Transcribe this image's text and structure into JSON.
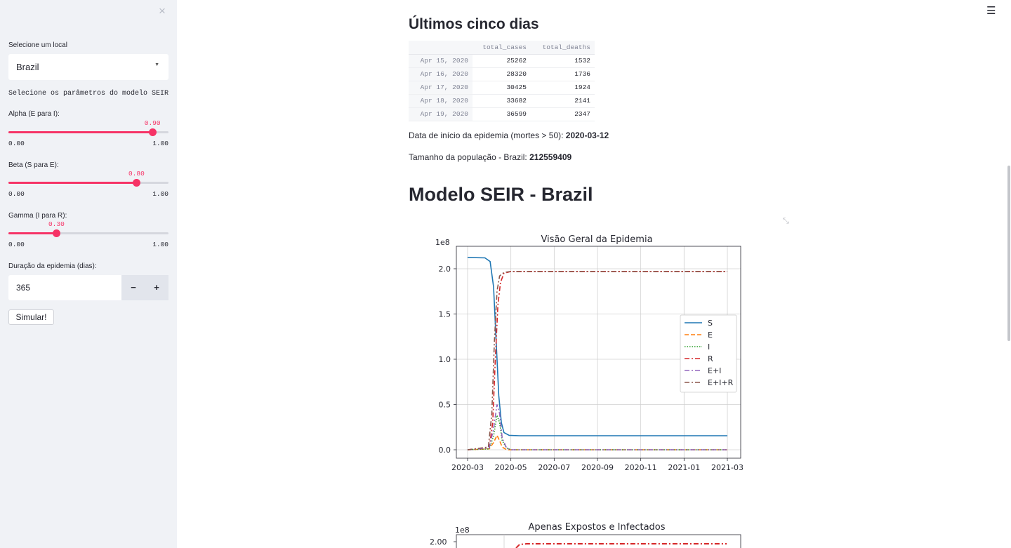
{
  "sidebar": {
    "close_icon": "×",
    "location_label": "Selecione um local",
    "location_value": "Brazil",
    "params_label": "Selecione os parâmetros do modelo SEIR",
    "sliders": [
      {
        "label": "Alpha (E para I):",
        "value": "0.90",
        "fraction": 0.9,
        "min": "0.00",
        "max": "1.00"
      },
      {
        "label": "Beta (S para E):",
        "value": "0.80",
        "fraction": 0.8,
        "min": "0.00",
        "max": "1.00"
      },
      {
        "label": "Gamma (I para R):",
        "value": "0.30",
        "fraction": 0.3,
        "min": "0.00",
        "max": "1.00"
      }
    ],
    "duration_label": "Duração da epidemia (dias):",
    "duration_value": "365",
    "minus": "−",
    "plus": "+",
    "simulate_button": "Simular!"
  },
  "header": {
    "menu_icon": "☰"
  },
  "main": {
    "last_days_title": "Últimos cinco dias",
    "table": {
      "columns": [
        "total_cases",
        "total_deaths"
      ],
      "rows": [
        {
          "date": "Apr 15, 2020",
          "cases": "25262",
          "deaths": "1532"
        },
        {
          "date": "Apr 16, 2020",
          "cases": "28320",
          "deaths": "1736"
        },
        {
          "date": "Apr 17, 2020",
          "cases": "30425",
          "deaths": "1924"
        },
        {
          "date": "Apr 18, 2020",
          "cases": "33682",
          "deaths": "2141"
        },
        {
          "date": "Apr 19, 2020",
          "cases": "36599",
          "deaths": "2347"
        }
      ]
    },
    "start_text": "Data de início da epidemia (mortes > 50): ",
    "start_value": "2020-03-12",
    "pop_text": "Tamanho da população - Brazil: ",
    "pop_value": "212559409",
    "model_title": "Modelo SEIR - Brazil"
  },
  "chart_data": [
    {
      "type": "line",
      "title": "Visão Geral da Epidemia",
      "offset_label": "1e8",
      "x_ticks": [
        "2020-03",
        "2020-05",
        "2020-07",
        "2020-09",
        "2020-11",
        "2021-01",
        "2021-03"
      ],
      "y_ticks": [
        "0.0",
        "0.5",
        "1.0",
        "1.5",
        "2.0"
      ],
      "ylim": [
        0,
        2.1
      ],
      "legend_position": "center-right",
      "series": [
        {
          "name": "S",
          "color": "#1f77b4",
          "style": "solid",
          "points": [
            [
              0,
              2.125
            ],
            [
              20,
              2.12
            ],
            [
              26,
              2.08
            ],
            [
              30,
              1.8
            ],
            [
              33,
              1.2
            ],
            [
              36,
              0.6
            ],
            [
              39,
              0.3
            ],
            [
              42,
              0.19
            ],
            [
              48,
              0.16
            ],
            [
              60,
              0.155
            ],
            [
              200,
              0.155
            ],
            [
              300,
              0.155
            ]
          ]
        },
        {
          "name": "E",
          "color": "#ff7f0e",
          "style": "dashed",
          "points": [
            [
              0,
              0
            ],
            [
              25,
              0.01
            ],
            [
              30,
              0.08
            ],
            [
              34,
              0.16
            ],
            [
              37,
              0.1
            ],
            [
              40,
              0.03
            ],
            [
              45,
              0.0
            ],
            [
              300,
              0
            ]
          ]
        },
        {
          "name": "I",
          "color": "#2ca02c",
          "style": "dotted",
          "points": [
            [
              0,
              0
            ],
            [
              25,
              0.01
            ],
            [
              30,
              0.15
            ],
            [
              34,
              0.38
            ],
            [
              37,
              0.3
            ],
            [
              40,
              0.1
            ],
            [
              45,
              0.02
            ],
            [
              50,
              0
            ],
            [
              300,
              0
            ]
          ]
        },
        {
          "name": "R",
          "color": "#d62728",
          "style": "dashdot",
          "points": [
            [
              0,
              0
            ],
            [
              25,
              0.02
            ],
            [
              29,
              0.3
            ],
            [
              32,
              1.0
            ],
            [
              35,
              1.6
            ],
            [
              38,
              1.85
            ],
            [
              42,
              1.95
            ],
            [
              50,
              1.97
            ],
            [
              300,
              1.97
            ]
          ]
        },
        {
          "name": "E+I",
          "color": "#9467bd",
          "style": "dashdot",
          "points": [
            [
              0,
              0
            ],
            [
              25,
              0.02
            ],
            [
              30,
              0.23
            ],
            [
              34,
              0.5
            ],
            [
              37,
              0.4
            ],
            [
              40,
              0.13
            ],
            [
              45,
              0.02
            ],
            [
              50,
              0
            ],
            [
              300,
              0
            ]
          ]
        },
        {
          "name": "E+I+R",
          "color": "#8c564b",
          "style": "dashdot",
          "points": [
            [
              0,
              0
            ],
            [
              24,
              0.03
            ],
            [
              28,
              0.4
            ],
            [
              31,
              1.2
            ],
            [
              34,
              1.75
            ],
            [
              37,
              1.92
            ],
            [
              42,
              1.96
            ],
            [
              50,
              1.97
            ],
            [
              300,
              1.97
            ]
          ]
        }
      ]
    },
    {
      "type": "line",
      "title": "Apenas Expostos e Infectados",
      "offset_label": "1e8",
      "y_ticks": [
        "2.00"
      ]
    }
  ]
}
